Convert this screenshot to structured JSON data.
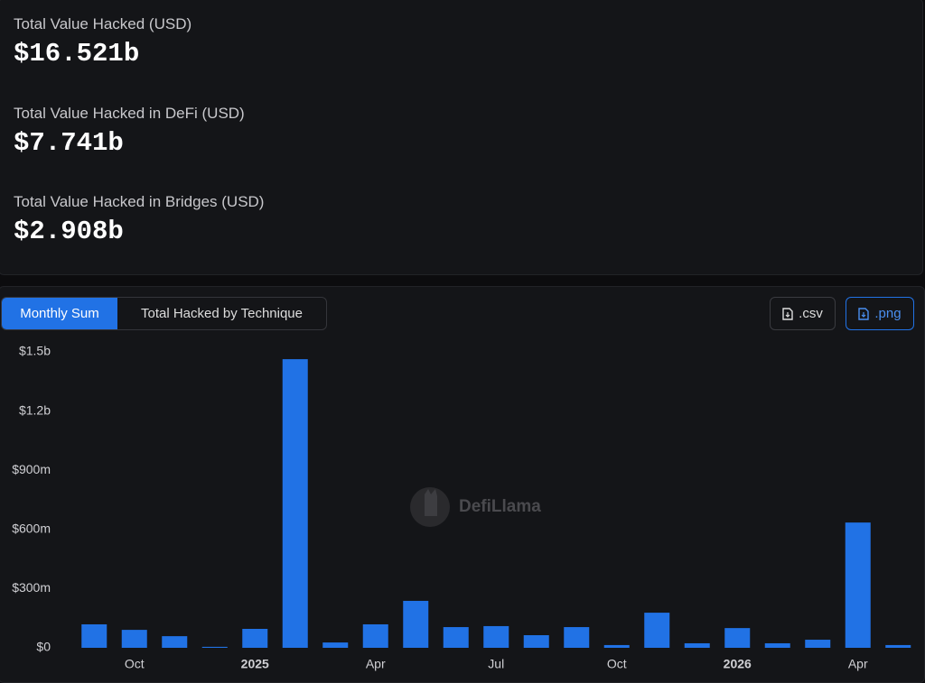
{
  "stats": [
    {
      "label": "Total Value Hacked (USD)",
      "value": "$16.521b"
    },
    {
      "label": "Total Value Hacked in DeFi (USD)",
      "value": "$7.741b"
    },
    {
      "label": "Total Value Hacked in Bridges (USD)",
      "value": "$2.908b"
    }
  ],
  "tabs": [
    "Monthly Sum",
    "Total Hacked by Technique"
  ],
  "buttons": [
    ".csv",
    ".png"
  ],
  "watermark": "DefiLlama",
  "chart_data": {
    "type": "bar",
    "color": "#2172e5",
    "grid": false,
    "categories": [
      null,
      "Oct",
      null,
      null,
      "2025",
      null,
      null,
      "Apr",
      null,
      null,
      "Jul",
      null,
      null,
      "Oct",
      null,
      null,
      "2026",
      null,
      null,
      "Apr",
      null
    ],
    "values": [
      119000000,
      91000000,
      59000000,
      5000000,
      96000000,
      1463000000,
      27000000,
      119000000,
      238000000,
      105000000,
      110000000,
      64000000,
      105000000,
      14000000,
      178000000,
      23000000,
      100000000,
      23000000,
      41000000,
      635000000,
      14000000
    ],
    "ylim": [
      0,
      1500000000
    ],
    "yticks": [
      {
        "value": 0,
        "label": "$0"
      },
      {
        "value": 300000000,
        "label": "$300m"
      },
      {
        "value": 600000000,
        "label": "$600m"
      },
      {
        "value": 900000000,
        "label": "$900m"
      },
      {
        "value": 1200000000,
        "label": "$1.2b"
      },
      {
        "value": 1500000000,
        "label": "$1.5b"
      }
    ]
  }
}
